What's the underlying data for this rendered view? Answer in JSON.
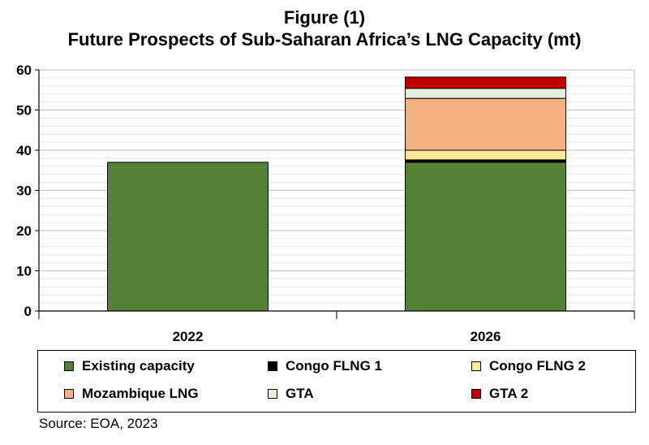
{
  "title_line1": "Figure (1)",
  "title_line2": "Future Prospects of Sub-Saharan Africa’s LNG Capacity (mt)",
  "source": "Source: EOA, 2023",
  "chart_data": {
    "type": "bar",
    "stacked": true,
    "title": "Future Prospects of Sub-Saharan Africa’s LNG Capacity (mt)",
    "categories": [
      "2022",
      "2026"
    ],
    "ylim": [
      0,
      60
    ],
    "yticks": [
      0,
      10,
      20,
      30,
      40,
      50,
      60
    ],
    "grid": true,
    "legend_position": "bottom",
    "series": [
      {
        "name": "Existing capacity",
        "color": "#538135",
        "values": [
          37,
          37
        ]
      },
      {
        "name": "Congo FLNG 1",
        "color": "#000000",
        "values": [
          0,
          0.6
        ]
      },
      {
        "name": "Congo FLNG 2",
        "color": "#FFE699",
        "values": [
          0,
          2.4
        ]
      },
      {
        "name": "Mozambique LNG",
        "color": "#F4B183",
        "values": [
          0,
          12.9
        ]
      },
      {
        "name": "GTA",
        "color": "#E2EFDA",
        "values": [
          0,
          2.5
        ]
      },
      {
        "name": "GTA 2",
        "color": "#C00000",
        "values": [
          0,
          2.8
        ]
      }
    ]
  }
}
